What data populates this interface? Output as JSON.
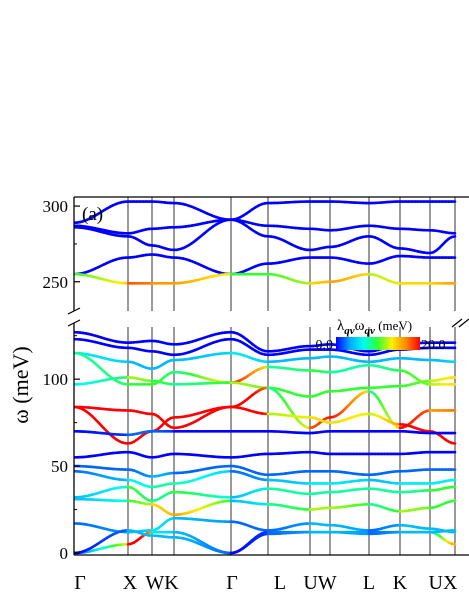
{
  "chart_data": {
    "type": "line",
    "panel_label": "(a)",
    "ylabel": "ω (meV)",
    "colorbar": {
      "label": "λqν ωqν (meV)",
      "label_parts": [
        "λ",
        "qν",
        "ω",
        "qν",
        " (meV)"
      ],
      "min_label": "0.0",
      "max_label": "20.0",
      "range": [
        0,
        20
      ],
      "colormap": [
        "#0000ff",
        "#00aaff",
        "#00ffee",
        "#33ff33",
        "#ffee00",
        "#ff8800",
        "#ff0000"
      ]
    },
    "kpath": [
      "Γ",
      "X",
      "W",
      "K",
      "Γ",
      "L",
      "U",
      "W",
      "L",
      "K",
      "U",
      "X"
    ],
    "kpath_display": [
      "Γ",
      "X",
      "WK",
      "Γ",
      "L",
      "UW",
      "L",
      "K",
      "UX"
    ],
    "y_axis": {
      "broken": true,
      "lower": {
        "ylim": [
          0,
          130
        ],
        "ticks": [
          0,
          50,
          100
        ]
      },
      "upper": {
        "ylim": [
          232,
          306
        ],
        "ticks": [
          250,
          300
        ]
      }
    },
    "series_upper": [
      {
        "y": [
          289,
          303,
          303,
          302,
          291,
          302,
          303,
          303,
          302,
          303,
          303,
          303
        ],
        "c": [
          0,
          0,
          0,
          0,
          0,
          0,
          0,
          0,
          0,
          0,
          0,
          0
        ]
      },
      {
        "y": [
          287,
          282,
          285,
          286,
          291,
          287,
          285,
          284,
          287,
          285,
          284,
          282
        ],
        "c": [
          0,
          0,
          0,
          0,
          0,
          0,
          0,
          0,
          0,
          0,
          0,
          0
        ]
      },
      {
        "y": [
          286,
          280,
          274,
          271,
          291,
          280,
          271,
          273,
          280,
          272,
          269,
          280
        ],
        "c": [
          0,
          0,
          0,
          0,
          0,
          0,
          0,
          0,
          0,
          0,
          0,
          0
        ]
      },
      {
        "y": [
          255,
          266,
          268,
          266,
          255,
          262,
          266,
          266,
          262,
          267,
          266,
          266
        ],
        "c": [
          0,
          0,
          0,
          0,
          0,
          0,
          0,
          0,
          0,
          0,
          0,
          0
        ]
      },
      {
        "y": [
          255,
          249,
          249,
          249,
          255,
          255,
          249,
          250,
          255,
          249,
          249,
          249
        ],
        "c": [
          5,
          9,
          8,
          8,
          5,
          5,
          7,
          8,
          6,
          7,
          7,
          9
        ]
      }
    ],
    "series_lower": [
      {
        "y": [
          127,
          121,
          122,
          120,
          127,
          116,
          119,
          120,
          116,
          120,
          121,
          121
        ],
        "c": [
          0,
          0,
          0,
          0,
          0,
          0,
          0,
          0,
          0,
          0,
          0,
          0
        ]
      },
      {
        "y": [
          123,
          118,
          116,
          114,
          123,
          114,
          117,
          117,
          114,
          117,
          118,
          118
        ],
        "c": [
          0,
          0,
          0,
          0,
          0,
          0,
          0,
          0,
          0,
          0,
          0,
          0
        ]
      },
      {
        "y": [
          115,
          110,
          106,
          111,
          115,
          110,
          112,
          113,
          110,
          112,
          111,
          110
        ],
        "c": [
          3,
          2,
          2,
          2,
          3,
          2,
          2,
          2,
          2,
          2,
          2,
          3
        ]
      },
      {
        "y": [
          115,
          97,
          97,
          104,
          98,
          107,
          105,
          104,
          108,
          105,
          97,
          97
        ],
        "c": [
          4,
          5,
          5,
          4,
          10,
          4,
          5,
          4,
          4,
          5,
          6,
          8
        ]
      },
      {
        "y": [
          97,
          101,
          99,
          97,
          98,
          95,
          90,
          93,
          95,
          96,
          99,
          101
        ],
        "c": [
          3,
          6,
          5,
          4,
          6,
          5,
          5,
          5,
          5,
          5,
          6,
          8
        ]
      },
      {
        "y": [
          84,
          82,
          80,
          72,
          84,
          95,
          72,
          78,
          93,
          72,
          82,
          82
        ],
        "c": [
          17,
          11,
          15,
          16,
          13,
          4,
          9,
          10,
          4,
          10,
          8,
          9
        ]
      },
      {
        "y": [
          84,
          63,
          70,
          78,
          84,
          80,
          78,
          75,
          80,
          74,
          70,
          63
        ],
        "c": [
          17,
          16,
          14,
          12,
          13,
          6,
          7,
          7,
          6,
          10,
          14,
          18
        ]
      },
      {
        "y": [
          70,
          68,
          70,
          70,
          70,
          70,
          69,
          70,
          70,
          70,
          69,
          69
        ],
        "c": [
          0,
          1,
          1,
          0,
          0,
          0,
          0,
          0,
          0,
          0,
          0,
          0
        ]
      },
      {
        "y": [
          55,
          58,
          55,
          57,
          55,
          57,
          58,
          57,
          57,
          57,
          58,
          58
        ],
        "c": [
          0,
          0,
          0,
          0,
          0,
          0,
          0,
          0,
          0,
          0,
          0,
          0
        ]
      },
      {
        "y": [
          50,
          48,
          44,
          46,
          50,
          45,
          47,
          47,
          45,
          47,
          48,
          48
        ],
        "c": [
          1,
          1,
          2,
          1,
          1,
          1,
          1,
          1,
          1,
          1,
          1,
          1
        ]
      },
      {
        "y": [
          47,
          42,
          38,
          40,
          47,
          42,
          40,
          40,
          42,
          40,
          40,
          42
        ],
        "c": [
          1,
          3,
          4,
          4,
          1,
          2,
          3,
          3,
          2,
          3,
          3,
          3
        ]
      },
      {
        "y": [
          32,
          38,
          30,
          35,
          32,
          37,
          34,
          35,
          37,
          35,
          36,
          38
        ],
        "c": [
          2,
          5,
          4,
          5,
          2,
          4,
          4,
          4,
          4,
          4,
          5,
          5
        ]
      },
      {
        "y": [
          31,
          30,
          28,
          22,
          30,
          28,
          25,
          26,
          28,
          24,
          26,
          30
        ],
        "c": [
          2,
          5,
          7,
          8,
          2,
          4,
          6,
          6,
          4,
          6,
          5,
          5
        ]
      },
      {
        "y": [
          17,
          12,
          13,
          20,
          18,
          13,
          17,
          16,
          13,
          16,
          14,
          12
        ],
        "c": [
          1,
          2,
          3,
          2,
          1,
          1,
          2,
          2,
          1,
          2,
          2,
          2
        ]
      },
      {
        "y": [
          0,
          5,
          12,
          12,
          0,
          11,
          12,
          12,
          11,
          12,
          12,
          5
        ],
        "c": [
          0,
          13,
          3,
          2,
          0,
          1,
          2,
          2,
          1,
          2,
          3,
          13
        ]
      },
      {
        "y": [
          0,
          13,
          10,
          9,
          0,
          12,
          12,
          12,
          12,
          12,
          12,
          13
        ],
        "c": [
          0,
          2,
          2,
          2,
          0,
          1,
          2,
          2,
          1,
          2,
          2,
          2
        ]
      }
    ]
  }
}
